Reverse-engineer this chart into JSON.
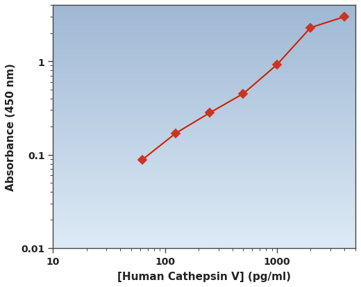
{
  "x": [
    62.5,
    125,
    250,
    500,
    1000,
    2000,
    4000
  ],
  "y": [
    0.088,
    0.17,
    0.28,
    0.45,
    0.92,
    2.3,
    3.0
  ],
  "xlim": [
    10,
    5000
  ],
  "ylim": [
    0.01,
    4.0
  ],
  "xlabel": "[Human Cathepsin V] (pg/ml)",
  "ylabel": "Absorbance (450 nm)",
  "line_color": "#cc2200",
  "marker_color": "#cc3322",
  "marker_size": 7,
  "line_width": 1.5,
  "bg_color_top": "#9fb8d4",
  "bg_color_bottom": "#ddeaf6",
  "xlabel_fontsize": 11,
  "ylabel_fontsize": 11,
  "tick_fontsize": 10,
  "spine_color": "#444444",
  "xtick_positions": [
    10,
    100,
    1000
  ],
  "xtick_labels": [
    "10",
    "100",
    "1000"
  ],
  "ytick_positions": [
    0.01,
    0.1,
    1
  ],
  "ytick_labels": [
    "0.01",
    "0.1",
    "1"
  ]
}
